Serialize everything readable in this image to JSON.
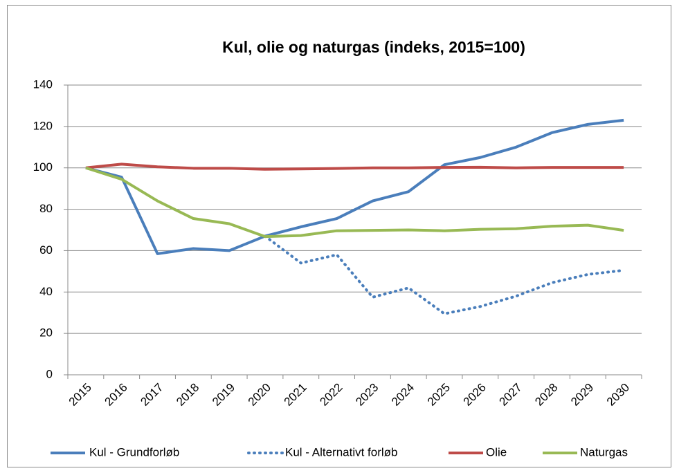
{
  "chart_data": {
    "type": "line",
    "title": "Kul, olie og naturgas (indeks, 2015=100)",
    "categories": [
      "2015",
      "2016",
      "2017",
      "2018",
      "2019",
      "2020",
      "2021",
      "2022",
      "2023",
      "2024",
      "2025",
      "2026",
      "2027",
      "2028",
      "2029",
      "2030"
    ],
    "series": [
      {
        "name": "Kul - Grundforløb",
        "color": "#4a7ebb",
        "dash": false,
        "values": [
          100,
          95.5,
          58.5,
          61,
          60,
          67,
          71.5,
          75.5,
          84,
          88.5,
          101.5,
          105,
          110,
          117,
          121,
          123
        ]
      },
      {
        "name": "Kul - Alternativt forløb",
        "color": "#4a7ebb",
        "dash": true,
        "values": [
          null,
          null,
          null,
          null,
          null,
          67,
          54,
          58,
          37.5,
          42,
          29.5,
          33,
          38,
          44.5,
          48.5,
          50.5
        ]
      },
      {
        "name": "Olie",
        "color": "#be4b48",
        "dash": false,
        "values": [
          100,
          101.8,
          100.5,
          99.8,
          99.8,
          99.3,
          99.5,
          99.7,
          100,
          100,
          100.2,
          100.3,
          100,
          100.2,
          100.2,
          100.2
        ]
      },
      {
        "name": "Naturgas",
        "color": "#98b954",
        "dash": false,
        "values": [
          100,
          94.5,
          84,
          75.5,
          73,
          66.8,
          67.3,
          69.6,
          69.8,
          70,
          69.6,
          70.3,
          70.6,
          71.8,
          72.3,
          69.8
        ]
      }
    ],
    "ylim": [
      0,
      140
    ],
    "yticks": [
      0,
      20,
      40,
      60,
      80,
      100,
      120,
      140
    ],
    "grid": true,
    "legend": "bottom"
  }
}
